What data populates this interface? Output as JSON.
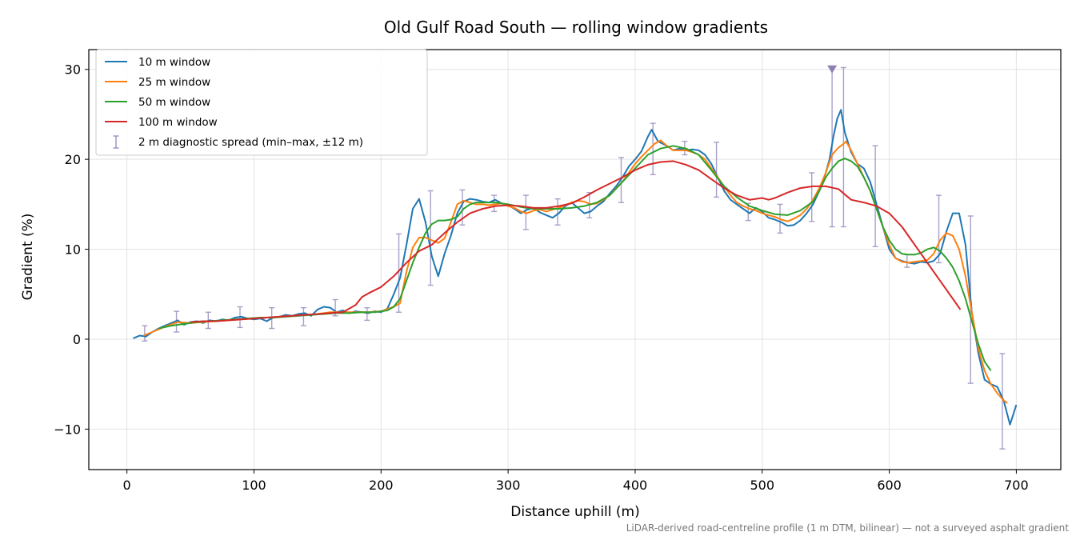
{
  "chart_data": {
    "type": "line",
    "title": "Old Gulf Road South — rolling window gradients",
    "xlabel": "Distance uphill (m)",
    "ylabel": "Gradient (%)",
    "xlim": [
      -30,
      735
    ],
    "ylim": [
      -14.5,
      32.2
    ],
    "xticks": [
      0,
      100,
      200,
      300,
      400,
      500,
      600,
      700
    ],
    "yticks": [
      -10,
      0,
      10,
      20,
      30
    ],
    "ytick_labels": [
      "−10",
      "0",
      "10",
      "20",
      "30"
    ],
    "grid": true,
    "legend_position": "upper left",
    "footnote": "LiDAR-derived road-centreline profile (1 m DTM, bilinear) — not a surveyed asphalt gradient",
    "series": [
      {
        "name": "10 m window",
        "color": "#1f77b4",
        "x": [
          5,
          10,
          15,
          20,
          25,
          30,
          35,
          40,
          45,
          50,
          55,
          60,
          65,
          70,
          75,
          80,
          85,
          90,
          95,
          100,
          105,
          110,
          115,
          120,
          125,
          130,
          135,
          140,
          145,
          150,
          155,
          160,
          165,
          170,
          175,
          180,
          185,
          190,
          195,
          200,
          205,
          210,
          215,
          220,
          225,
          230,
          235,
          240,
          245,
          250,
          255,
          260,
          265,
          270,
          275,
          280,
          285,
          290,
          295,
          300,
          305,
          310,
          315,
          320,
          325,
          330,
          335,
          340,
          345,
          350,
          355,
          360,
          365,
          370,
          375,
          380,
          385,
          390,
          395,
          400,
          405,
          410,
          413,
          418,
          425,
          430,
          435,
          440,
          445,
          450,
          455,
          460,
          465,
          470,
          475,
          480,
          485,
          490,
          495,
          500,
          505,
          510,
          515,
          520,
          525,
          530,
          535,
          540,
          545,
          550,
          553,
          556,
          559,
          562,
          565,
          570,
          575,
          580,
          585,
          590,
          595,
          600,
          605,
          610,
          615,
          620,
          625,
          630,
          635,
          640,
          645,
          650,
          655,
          660,
          665,
          670,
          675,
          680,
          685,
          690,
          695,
          700
        ],
        "y": [
          0.1,
          0.4,
          0.3,
          0.8,
          1.2,
          1.5,
          1.8,
          2.1,
          1.6,
          1.9,
          2.0,
          1.8,
          2.1,
          2.0,
          2.2,
          2.1,
          2.4,
          2.5,
          2.3,
          2.2,
          2.3,
          2.0,
          2.4,
          2.5,
          2.7,
          2.6,
          2.8,
          2.9,
          2.6,
          3.3,
          3.6,
          3.5,
          3.0,
          3.2,
          2.9,
          3.1,
          3.0,
          2.9,
          3.1,
          3.0,
          3.4,
          5.0,
          6.8,
          10.5,
          14.5,
          15.6,
          13.0,
          9.2,
          7.0,
          9.5,
          11.5,
          14.0,
          15.3,
          15.6,
          15.5,
          15.3,
          15.2,
          15.5,
          15.1,
          14.9,
          14.5,
          14.0,
          14.4,
          14.6,
          14.1,
          13.8,
          13.5,
          14.0,
          14.8,
          15.2,
          14.6,
          14.0,
          14.2,
          14.8,
          15.3,
          16.2,
          17.0,
          18.0,
          19.2,
          20.0,
          20.9,
          22.5,
          23.3,
          22.0,
          21.5,
          21.0,
          21.2,
          21.0,
          21.1,
          21.0,
          20.5,
          19.5,
          18.0,
          16.5,
          15.5,
          15.0,
          14.5,
          14.0,
          14.6,
          14.2,
          13.5,
          13.3,
          13.0,
          12.6,
          12.7,
          13.2,
          14.0,
          15.0,
          16.5,
          18.5,
          20.0,
          22.5,
          24.5,
          25.5,
          23.0,
          20.8,
          19.5,
          19.0,
          17.5,
          15.0,
          12.5,
          10.0,
          9.0,
          8.7,
          8.5,
          8.4,
          8.6,
          8.5,
          8.7,
          9.5,
          12.0,
          14.0,
          14.0,
          10.5,
          3.0,
          -1.5,
          -4.5,
          -5.0,
          -5.3,
          -6.8,
          -9.5,
          -7.3
        ]
      },
      {
        "name": "25 m window",
        "color": "#ff7f0e",
        "x": [
          13,
          20,
          30,
          40,
          50,
          60,
          70,
          80,
          90,
          100,
          110,
          120,
          130,
          140,
          150,
          160,
          170,
          180,
          190,
          200,
          210,
          215,
          220,
          225,
          230,
          235,
          240,
          245,
          250,
          255,
          260,
          265,
          270,
          275,
          280,
          285,
          290,
          295,
          300,
          305,
          310,
          315,
          320,
          325,
          330,
          335,
          340,
          345,
          350,
          355,
          360,
          365,
          370,
          375,
          380,
          385,
          390,
          395,
          400,
          405,
          410,
          415,
          420,
          425,
          430,
          435,
          440,
          445,
          450,
          455,
          460,
          465,
          470,
          475,
          480,
          485,
          490,
          495,
          500,
          505,
          510,
          515,
          520,
          525,
          530,
          535,
          540,
          545,
          550,
          555,
          560,
          563,
          566,
          570,
          575,
          580,
          585,
          590,
          595,
          600,
          605,
          610,
          615,
          620,
          625,
          630,
          635,
          640,
          645,
          650,
          655,
          660,
          665,
          670,
          675,
          680,
          685,
          690,
          693
        ],
        "y": [
          0.4,
          0.8,
          1.4,
          1.9,
          1.8,
          1.9,
          2.0,
          2.1,
          2.2,
          2.3,
          2.4,
          2.5,
          2.6,
          2.7,
          2.8,
          3.0,
          3.0,
          3.0,
          3.0,
          3.1,
          3.6,
          4.0,
          7.5,
          10.2,
          11.3,
          11.3,
          11.0,
          10.7,
          11.2,
          13.0,
          15.0,
          15.4,
          15.2,
          15.0,
          15.0,
          14.9,
          15.0,
          15.1,
          14.8,
          14.6,
          14.2,
          14.0,
          14.3,
          14.4,
          14.2,
          14.4,
          14.6,
          14.9,
          15.2,
          15.4,
          15.3,
          15.0,
          15.1,
          15.5,
          16.0,
          16.8,
          17.5,
          18.5,
          19.5,
          20.3,
          21.0,
          21.7,
          22.1,
          21.5,
          21.0,
          21.0,
          21.0,
          20.8,
          20.5,
          20.0,
          19.0,
          18.0,
          17.0,
          16.0,
          15.2,
          14.8,
          14.5,
          14.3,
          14.0,
          13.8,
          13.6,
          13.3,
          13.1,
          13.4,
          13.8,
          14.5,
          15.5,
          16.8,
          18.5,
          20.5,
          21.3,
          21.6,
          22.0,
          21.0,
          19.5,
          18.0,
          16.5,
          14.5,
          12.5,
          10.5,
          9.0,
          8.6,
          8.5,
          8.6,
          8.7,
          8.8,
          9.5,
          11.0,
          11.8,
          11.5,
          10.0,
          7.0,
          3.0,
          -1.0,
          -3.5,
          -5.0,
          -6.0,
          -6.8,
          -7.1
        ]
      },
      {
        "name": "50 m window",
        "color": "#2ca02c",
        "x": [
          25,
          35,
          45,
          55,
          65,
          75,
          85,
          95,
          105,
          115,
          125,
          135,
          145,
          155,
          165,
          175,
          185,
          195,
          205,
          210,
          215,
          220,
          225,
          230,
          235,
          240,
          245,
          250,
          255,
          260,
          265,
          270,
          275,
          280,
          290,
          300,
          310,
          320,
          330,
          340,
          350,
          360,
          370,
          380,
          390,
          400,
          410,
          420,
          430,
          440,
          450,
          460,
          470,
          480,
          490,
          500,
          510,
          520,
          530,
          540,
          545,
          550,
          555,
          560,
          565,
          570,
          575,
          580,
          585,
          590,
          595,
          600,
          605,
          610,
          615,
          620,
          625,
          630,
          635,
          640,
          645,
          650,
          655,
          660,
          665,
          670,
          675,
          680
        ],
        "y": [
          1.2,
          1.5,
          1.7,
          1.9,
          2.0,
          2.1,
          2.2,
          2.3,
          2.4,
          2.4,
          2.5,
          2.6,
          2.7,
          2.8,
          2.9,
          2.9,
          3.0,
          3.0,
          3.2,
          3.6,
          4.5,
          6.5,
          8.5,
          10.2,
          11.8,
          12.8,
          13.2,
          13.2,
          13.3,
          13.6,
          14.5,
          15.0,
          15.2,
          15.2,
          15.2,
          15.0,
          14.7,
          14.5,
          14.5,
          14.5,
          14.6,
          14.8,
          15.2,
          16.0,
          17.5,
          19.0,
          20.5,
          21.2,
          21.5,
          21.2,
          20.5,
          18.8,
          17.0,
          15.8,
          14.8,
          14.3,
          13.9,
          13.8,
          14.3,
          15.3,
          16.5,
          18.0,
          19.0,
          19.8,
          20.1,
          19.8,
          19.2,
          18.0,
          16.5,
          14.5,
          12.5,
          11.0,
          10.0,
          9.5,
          9.4,
          9.4,
          9.6,
          10.0,
          10.2,
          9.8,
          9.0,
          8.0,
          6.5,
          4.5,
          2.0,
          -0.5,
          -2.5,
          -3.5
        ]
      },
      {
        "name": "100 m window",
        "color": "#d62728",
        "x": [
          50,
          60,
          70,
          80,
          90,
          100,
          110,
          120,
          130,
          140,
          150,
          160,
          170,
          180,
          185,
          190,
          200,
          210,
          220,
          230,
          240,
          250,
          260,
          270,
          280,
          290,
          300,
          310,
          320,
          330,
          340,
          350,
          360,
          370,
          380,
          390,
          400,
          410,
          420,
          430,
          440,
          450,
          460,
          470,
          480,
          490,
          500,
          505,
          510,
          520,
          530,
          540,
          550,
          560,
          570,
          580,
          590,
          600,
          610,
          620,
          630,
          640,
          650,
          656
        ],
        "y": [
          1.9,
          2.0,
          2.0,
          2.1,
          2.2,
          2.3,
          2.4,
          2.5,
          2.6,
          2.7,
          2.8,
          2.9,
          3.0,
          3.8,
          4.7,
          5.1,
          5.8,
          7.0,
          8.5,
          9.8,
          10.5,
          11.8,
          13.0,
          14.0,
          14.5,
          14.8,
          14.9,
          14.8,
          14.6,
          14.6,
          14.8,
          15.1,
          15.8,
          16.6,
          17.3,
          18.0,
          18.8,
          19.4,
          19.7,
          19.8,
          19.4,
          18.8,
          17.8,
          16.8,
          16.0,
          15.5,
          15.7,
          15.5,
          15.7,
          16.3,
          16.8,
          17.0,
          17.0,
          16.7,
          15.5,
          15.2,
          14.8,
          14.0,
          12.5,
          10.5,
          8.5,
          6.5,
          4.5,
          3.3
        ]
      }
    ],
    "errorbars": {
      "name": "2 m diagnostic spread (min–max, ±12 m)",
      "color": "#9a8fbf",
      "items": [
        {
          "x": 14,
          "min": -0.2,
          "max": 1.5
        },
        {
          "x": 39,
          "min": 0.8,
          "max": 3.1
        },
        {
          "x": 64,
          "min": 1.2,
          "max": 3.0
        },
        {
          "x": 89,
          "min": 1.3,
          "max": 3.6
        },
        {
          "x": 114,
          "min": 1.2,
          "max": 3.5
        },
        {
          "x": 139,
          "min": 1.5,
          "max": 3.5
        },
        {
          "x": 164,
          "min": 2.6,
          "max": 4.4
        },
        {
          "x": 189,
          "min": 2.1,
          "max": 3.5
        },
        {
          "x": 214,
          "min": 3.0,
          "max": 11.7
        },
        {
          "x": 239,
          "min": 6.0,
          "max": 16.5
        },
        {
          "x": 264,
          "min": 12.7,
          "max": 16.6
        },
        {
          "x": 289,
          "min": 14.2,
          "max": 16.0
        },
        {
          "x": 314,
          "min": 12.2,
          "max": 16.0
        },
        {
          "x": 339,
          "min": 12.7,
          "max": 15.6
        },
        {
          "x": 364,
          "min": 13.5,
          "max": 16.3
        },
        {
          "x": 389,
          "min": 15.2,
          "max": 20.2
        },
        {
          "x": 414,
          "min": 18.3,
          "max": 24.0
        },
        {
          "x": 439,
          "min": 20.5,
          "max": 22.0
        },
        {
          "x": 464,
          "min": 15.8,
          "max": 21.9
        },
        {
          "x": 489,
          "min": 13.2,
          "max": 15.1
        },
        {
          "x": 514,
          "min": 11.8,
          "max": 15.0
        },
        {
          "x": 539,
          "min": 13.1,
          "max": 18.5
        },
        {
          "x": 555,
          "min": 12.5,
          "max": 30.2
        },
        {
          "x": 564,
          "min": 12.5,
          "max": 30.2
        },
        {
          "x": 589,
          "min": 10.3,
          "max": 21.5
        },
        {
          "x": 614,
          "min": 8.0,
          "max": 9.4
        },
        {
          "x": 639,
          "min": 8.5,
          "max": 16.0
        },
        {
          "x": 664,
          "min": -4.9,
          "max": 13.7
        },
        {
          "x": 689,
          "min": -12.2,
          "max": -1.6
        }
      ],
      "marker": {
        "x": 555,
        "y": 30.0,
        "shape": "down-triangle"
      }
    }
  }
}
